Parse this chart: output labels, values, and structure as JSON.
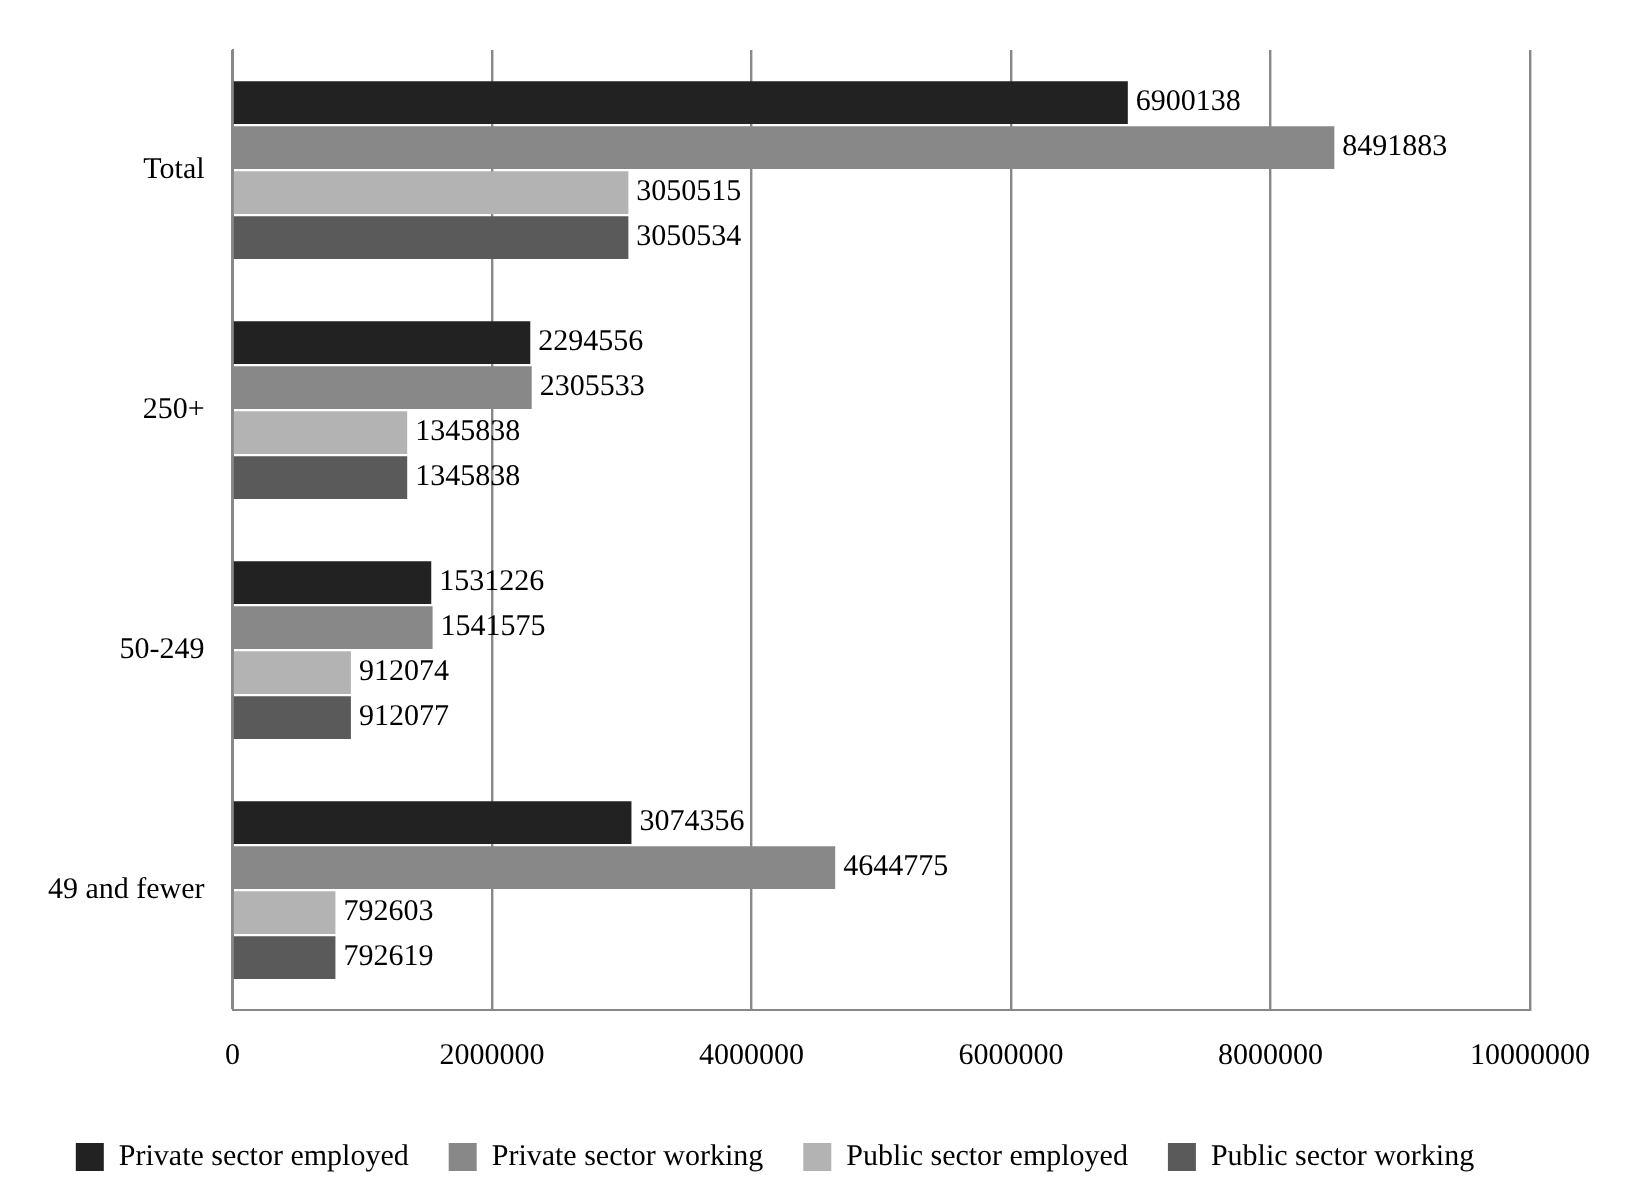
{
  "chart_data": {
    "type": "bar",
    "orientation": "horizontal",
    "categories": [
      "Total",
      "250+",
      "50-249",
      "49 and fewer"
    ],
    "series": [
      {
        "name": "Private sector employed",
        "color": "#222222",
        "values": [
          6900138,
          2294556,
          1531226,
          3074356
        ]
      },
      {
        "name": "Private sector working",
        "color": "#888888",
        "values": [
          8491883,
          2305533,
          1541575,
          4644775
        ]
      },
      {
        "name": "Public sector employed",
        "color": "#b3b3b3",
        "values": [
          3050515,
          1345838,
          912074,
          792603
        ]
      },
      {
        "name": "Public sector working",
        "color": "#5a5a5a",
        "values": [
          3050534,
          1345838,
          912077,
          792619
        ]
      }
    ],
    "xlim": [
      0,
      10000000
    ],
    "xticks": [
      0,
      2000000,
      4000000,
      6000000,
      8000000,
      10000000
    ],
    "grid": "x",
    "legend": "bottom",
    "data_labels": true
  }
}
